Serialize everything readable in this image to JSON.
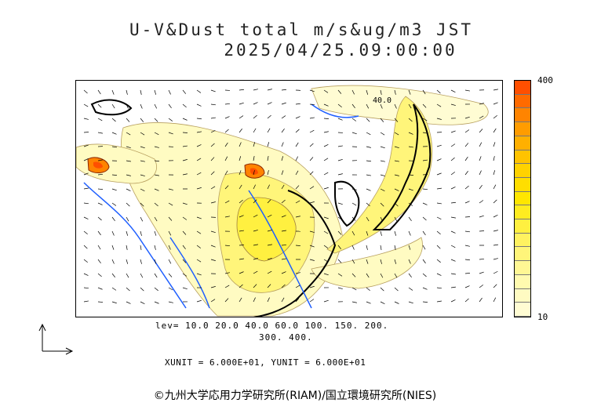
{
  "title": {
    "line1": "U-V&Dust total m/s&ug/m3 JST",
    "line2": "2025/04/25.09:00:00"
  },
  "map": {
    "contour_label": "40.0"
  },
  "colorbar": {
    "max_label": "400",
    "min_label": "10",
    "colors": [
      "#ff4f00",
      "#ff6a00",
      "#ff8400",
      "#ff9c00",
      "#ffb000",
      "#ffc300",
      "#ffd200",
      "#ffde00",
      "#ffe600",
      "#ffec20",
      "#fff040",
      "#fff260",
      "#fff57a",
      "#fff794",
      "#fffaaf",
      "#fffbc2",
      "#fffcd3"
    ]
  },
  "levels": {
    "line1": "lev= 10.0 20.0 40.0 60.0 100. 150. 200.",
    "line2": "300. 400."
  },
  "units": "XUNIT = 6.000E+01, YUNIT = 6.000E+01",
  "copyright": "©九州大学応用力学研究所(RIAM)/国立環境研究所(NIES)"
}
